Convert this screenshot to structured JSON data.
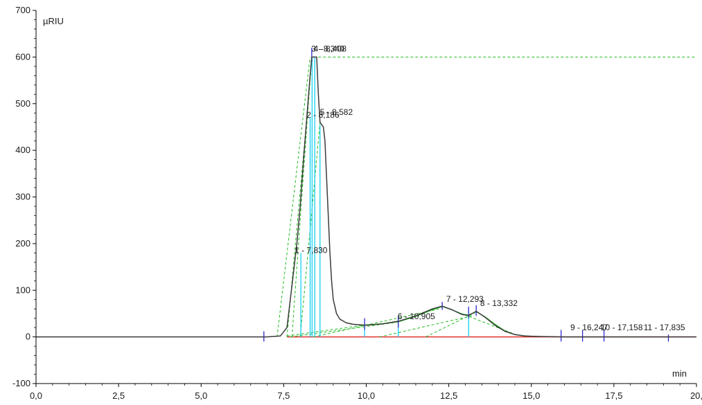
{
  "chart_data": {
    "type": "line",
    "title": "",
    "ylabel": "µRIU",
    "xlabel": "min",
    "xlim": [
      0,
      20
    ],
    "ylim": [
      -100,
      700
    ],
    "x_ticks": [
      0,
      2.5,
      5,
      7.5,
      10,
      12.5,
      15,
      17.5,
      20
    ],
    "x_tick_labels": [
      "0,0",
      "2,5",
      "5,0",
      "7,5",
      "10,0",
      "12,5",
      "15,0",
      "17,5",
      "20,"
    ],
    "y_ticks": [
      -100,
      0,
      100,
      200,
      300,
      400,
      500,
      600,
      700
    ],
    "y_tick_labels": [
      "-100",
      "0",
      "100",
      "200",
      "300",
      "400",
      "500",
      "600",
      "700"
    ],
    "grid": false,
    "colors": {
      "signal": "#3a3a3a",
      "baseline": "#e03030",
      "fit": "#22bb22",
      "peak_marker": "#00ccee",
      "event_marker": "#2a2ad0"
    },
    "series": [
      {
        "x": [
          0.0,
          2.0,
          4.0,
          6.0,
          7.0,
          7.4,
          7.6,
          7.75,
          7.9,
          8.0,
          8.1,
          8.2,
          8.3,
          8.35,
          8.4,
          8.5,
          8.55,
          8.6,
          8.7,
          8.75,
          8.8,
          8.85,
          8.9,
          8.95,
          9.0,
          9.1,
          9.2,
          9.4,
          9.6,
          9.8,
          10.0,
          10.5,
          11.0,
          11.5,
          12.0,
          12.3,
          12.6,
          12.9,
          13.1,
          13.33,
          13.6,
          13.9,
          14.2,
          14.5,
          14.8,
          15.2,
          16.0,
          17.0,
          18.0,
          19.0,
          20.0
        ],
        "y": [
          0,
          0,
          0,
          0,
          0,
          2,
          20,
          110,
          200,
          280,
          380,
          470,
          560,
          600,
          600,
          600,
          520,
          460,
          450,
          420,
          340,
          260,
          180,
          120,
          80,
          50,
          38,
          30,
          27,
          26,
          25,
          28,
          34,
          45,
          60,
          66,
          58,
          48,
          46,
          55,
          42,
          25,
          12,
          5,
          2,
          1,
          0,
          0,
          0,
          0,
          0
        ]
      }
    ],
    "peak_labels": [
      {
        "x": 7.83,
        "label": "1 - 7,830"
      },
      {
        "x": 8.186,
        "label": "2 - 8,186"
      },
      {
        "x": 8.34,
        "label": "3 - 8,340"
      },
      {
        "x": 8.408,
        "label": "4 - 8,408"
      },
      {
        "x": 8.582,
        "label": "5 - 8,582"
      },
      {
        "x": 10.905,
        "label": "6 - 10,905"
      },
      {
        "x": 12.293,
        "label": "7 - 12,293"
      },
      {
        "x": 13.332,
        "label": "8 - 13,332"
      },
      {
        "x": 16.2,
        "label": "9 - 16,247"
      },
      {
        "x": 17.1,
        "label": "10 - 17,158"
      },
      {
        "x": 17.835,
        "label": "11 - 17,835"
      }
    ]
  }
}
